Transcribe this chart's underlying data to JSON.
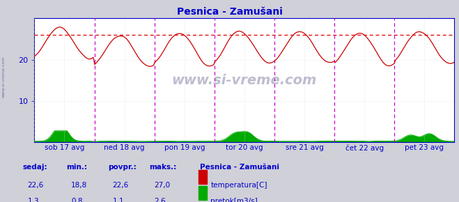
{
  "title": "Pesnica - Zamušani",
  "title_color": "#0000cc",
  "bg_color": "#d0d0d8",
  "plot_bg_color": "#ffffff",
  "watermark": "www.si-vreme.com",
  "xlabel_ticks": [
    "sob 17 avg",
    "ned 18 avg",
    "pon 19 avg",
    "tor 20 avg",
    "sre 21 avg",
    "čet 22 avg",
    "pet 23 avg"
  ],
  "ylim": [
    0,
    30
  ],
  "yticks": [
    10,
    20
  ],
  "grid_color": "#dddddd",
  "temp_color": "#cc0000",
  "flow_color": "#00aa00",
  "hline_color": "#dd0000",
  "hline_value": 26.0,
  "vline_color": "#cc00cc",
  "axis_color": "#0000cc",
  "tick_color": "#0000cc",
  "stats_label_color": "#0000cc",
  "num_points": 336,
  "temp_now": 22.6,
  "temp_min": 18.8,
  "temp_avg": 22.6,
  "temp_max": 27.0,
  "flow_now": 1.3,
  "flow_min": 0.8,
  "flow_avg": 1.1,
  "flow_max": 2.6,
  "legend_title": "Pesnica - Zamušani",
  "legend_temp_label": "temperatura[C]",
  "legend_flow_label": "pretok[m3/s]"
}
